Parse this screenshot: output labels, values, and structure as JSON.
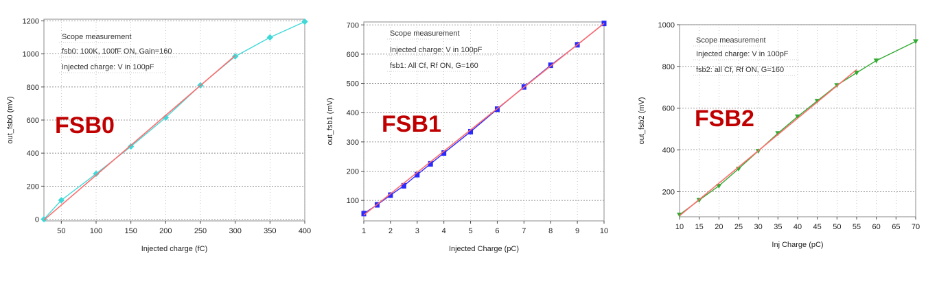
{
  "chart_data": [
    {
      "type": "line",
      "label": "FSB0",
      "annotations": [
        "Scope measurement",
        "fsb0: 100K, 100fF ON, Gain=160",
        "Injected charge: V in 100pF"
      ],
      "xlabel": "Injected charge (fC)",
      "ylabel": "out_fsb0 (mV)",
      "xlim": [
        25,
        400
      ],
      "ylim": [
        -10,
        1210
      ],
      "xticks": [
        50,
        100,
        150,
        200,
        250,
        300,
        350,
        400
      ],
      "yticks": [
        0,
        200,
        400,
        600,
        800,
        1000,
        1200
      ],
      "grid": true,
      "series": [
        {
          "color": "#40d8d8",
          "marker": "diamond",
          "x": [
            25,
            50,
            100,
            150,
            200,
            250,
            300,
            350,
            400
          ],
          "y": [
            0,
            115,
            275,
            440,
            615,
            810,
            985,
            1100,
            1195
          ]
        },
        {
          "color": "#ff6b6b",
          "marker": "none",
          "x": [
            25,
            300
          ],
          "y": [
            -5,
            990
          ]
        }
      ]
    },
    {
      "type": "line",
      "label": "FSB1",
      "annotations": [
        "Scope measurement",
        "Injected charge: V in 100pF",
        "fsb1: All Cf, Rf ON, G=160"
      ],
      "xlabel": "Injected Charge (pC)",
      "ylabel": "out_fsb1 (mV)",
      "xlim": [
        1,
        10
      ],
      "ylim": [
        30,
        710
      ],
      "xticks": [
        1,
        2,
        3,
        4,
        5,
        6,
        7,
        8,
        9,
        10
      ],
      "yticks": [
        100,
        200,
        300,
        400,
        500,
        600,
        700
      ],
      "grid": true,
      "series": [
        {
          "color": "#2a2aff",
          "marker": "square",
          "x": [
            1,
            1.5,
            2,
            2.5,
            3,
            3.5,
            4,
            5,
            6,
            7,
            8,
            9,
            10
          ],
          "y": [
            55,
            85,
            118,
            150,
            188,
            225,
            262,
            335,
            412,
            488,
            562,
            632,
            705
          ]
        },
        {
          "color": "#ff6b6b",
          "marker": "none",
          "x": [
            1,
            10
          ],
          "y": [
            50,
            705
          ]
        }
      ]
    },
    {
      "type": "line",
      "label": "FSB2",
      "annotations": [
        "Scope measurement",
        "Injected charge: V in 100pF",
        "fsb2: all Cf, Rf ON, G=160"
      ],
      "xlabel": "Inj Charge (pC)",
      "ylabel": "out_fsb2 (mV)",
      "xlim": [
        10,
        70
      ],
      "ylim": [
        80,
        1000
      ],
      "xticks": [
        10,
        15,
        20,
        25,
        30,
        35,
        40,
        45,
        50,
        55,
        60,
        65,
        70
      ],
      "yticks": [
        200,
        400,
        600,
        800,
        1000
      ],
      "grid": true,
      "series": [
        {
          "color": "#33aa33",
          "marker": "triangle-down",
          "x": [
            10,
            15,
            20,
            25,
            30,
            35,
            40,
            45,
            50,
            55,
            60,
            70
          ],
          "y": [
            90,
            160,
            228,
            310,
            395,
            480,
            560,
            635,
            710,
            770,
            828,
            920
          ]
        },
        {
          "color": "#ff6b6b",
          "marker": "none",
          "x": [
            10,
            55
          ],
          "y": [
            85,
            785
          ]
        }
      ]
    }
  ]
}
